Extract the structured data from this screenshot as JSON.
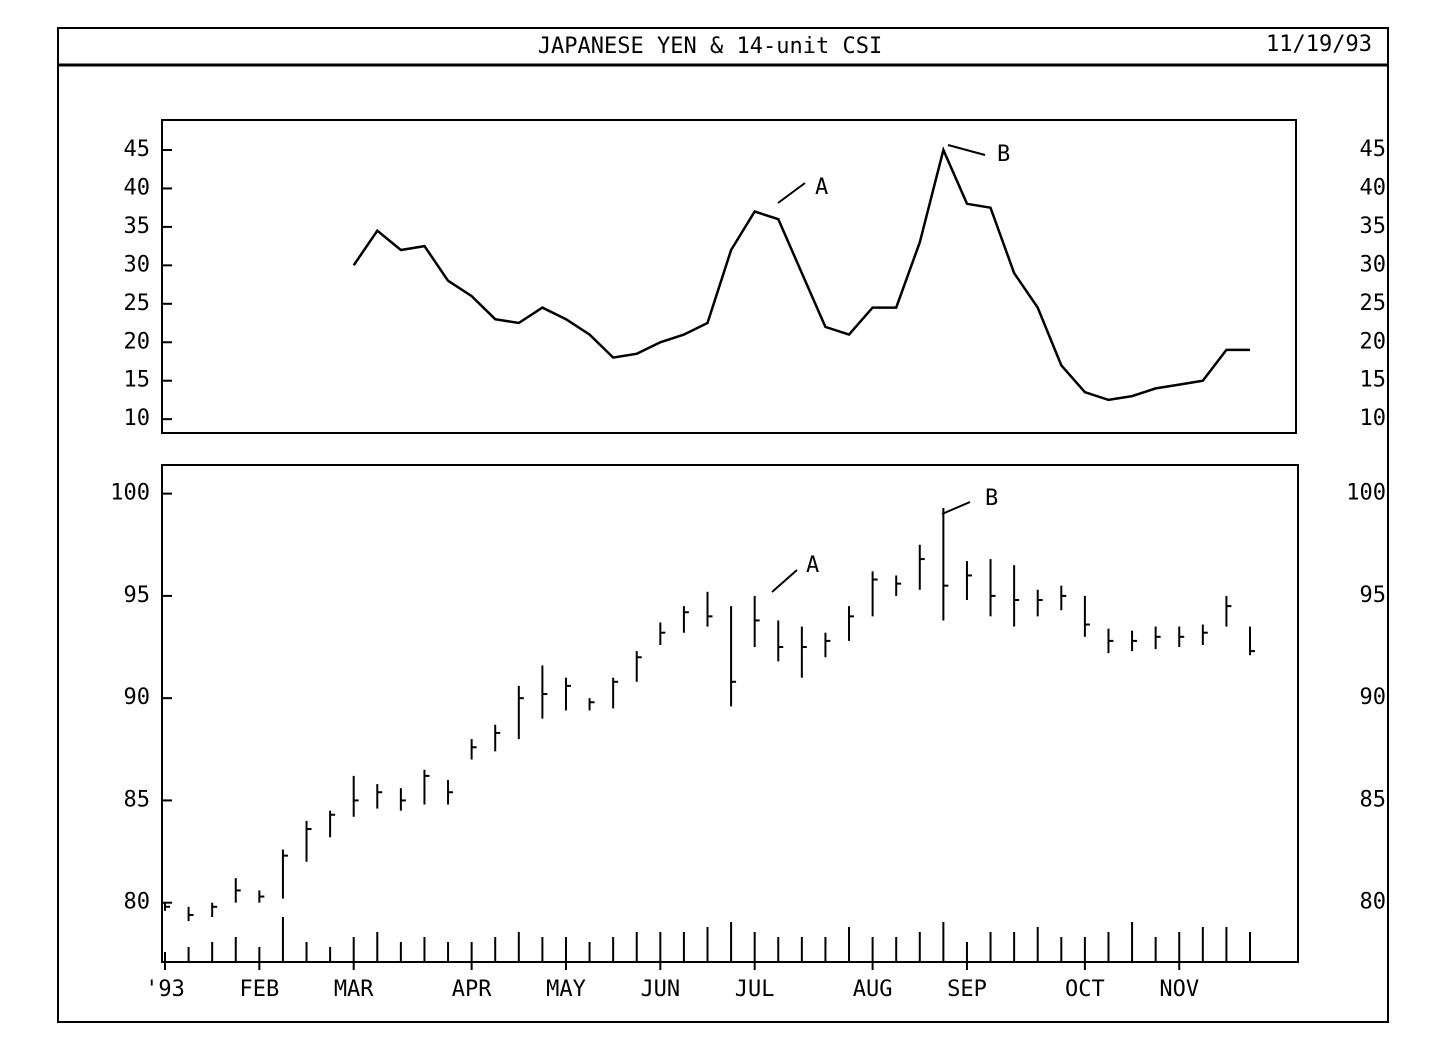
{
  "header": {
    "title": "JAPANESE YEN & 14-unit CSI",
    "date": "11/19/93"
  },
  "chart_data": [
    {
      "type": "line",
      "color": "#000000",
      "values": [
        null,
        null,
        null,
        null,
        null,
        null,
        null,
        null,
        30,
        34.5,
        32,
        32.5,
        28,
        26,
        23,
        22.5,
        24.5,
        23,
        21,
        18,
        18.5,
        20,
        21,
        22.5,
        32,
        37,
        36,
        29,
        22,
        21,
        24.5,
        24.5,
        33,
        45,
        38,
        37.5,
        29,
        24.5,
        17,
        13.5,
        12.5,
        13,
        14,
        14.5,
        15,
        19,
        19
      ],
      "ylim": [
        8.2,
        48.9
      ],
      "yticks": [
        10,
        15,
        20,
        25,
        30,
        35,
        40,
        45
      ],
      "annotations": [
        "A",
        "B"
      ]
    },
    {
      "type": "hilo",
      "color": "#000000",
      "categories": [
        "'93",
        null,
        null,
        null,
        "FEB",
        null,
        null,
        null,
        "MAR",
        null,
        null,
        null,
        null,
        "APR",
        null,
        null,
        null,
        "MAY",
        null,
        null,
        null,
        "JUN",
        null,
        null,
        null,
        "JUL",
        null,
        null,
        null,
        null,
        "AUG",
        null,
        null,
        null,
        "SEP",
        null,
        null,
        null,
        null,
        "OCT",
        null,
        null,
        null,
        "NOV",
        null,
        null,
        null
      ],
      "high": [
        80.0,
        79.8,
        80.0,
        81.2,
        80.6,
        82.6,
        84.0,
        84.5,
        86.2,
        85.8,
        85.6,
        86.5,
        86.0,
        88.0,
        88.7,
        90.6,
        91.6,
        91.0,
        90.0,
        91.0,
        92.3,
        93.7,
        94.5,
        95.2,
        94.5,
        95.0,
        93.8,
        93.5,
        93.2,
        94.5,
        96.2,
        96.0,
        97.5,
        99.3,
        96.7,
        96.8,
        96.5,
        95.3,
        95.5,
        95.0,
        93.4,
        93.3,
        93.5,
        93.5,
        93.6,
        95.0,
        93.5
      ],
      "low": [
        79.6,
        79.1,
        79.3,
        80.0,
        80.0,
        80.2,
        82.0,
        83.2,
        84.2,
        84.6,
        84.5,
        84.8,
        84.8,
        87.0,
        87.4,
        88.0,
        89.0,
        89.4,
        89.4,
        89.5,
        90.8,
        92.6,
        93.2,
        93.5,
        89.6,
        92.5,
        91.8,
        91.0,
        92.0,
        92.8,
        94.0,
        95.0,
        95.3,
        93.8,
        94.8,
        94.0,
        93.5,
        94.0,
        94.3,
        93.0,
        92.2,
        92.3,
        92.4,
        92.5,
        92.6,
        93.5,
        92.1
      ],
      "close": [
        79.8,
        79.4,
        79.8,
        80.6,
        80.3,
        82.3,
        83.6,
        84.3,
        85.0,
        85.4,
        85.0,
        86.2,
        85.4,
        87.6,
        88.3,
        90.0,
        90.2,
        90.6,
        89.8,
        90.8,
        92.0,
        93.2,
        94.2,
        94.0,
        90.8,
        93.8,
        92.5,
        92.5,
        92.8,
        94.0,
        95.8,
        95.6,
        96.8,
        95.5,
        96.0,
        95.0,
        94.8,
        94.8,
        95.0,
        93.6,
        92.8,
        92.8,
        93.0,
        93.0,
        93.2,
        94.5,
        92.3
      ],
      "volume": [
        2,
        3,
        4,
        5,
        3,
        9,
        4,
        3,
        5,
        6,
        4,
        5,
        4,
        4,
        5,
        6,
        5,
        5,
        4,
        5,
        6,
        6,
        6,
        7,
        8,
        6,
        5,
        5,
        5,
        7,
        5,
        5,
        6,
        8,
        4,
        6,
        6,
        7,
        5,
        5,
        6,
        8,
        5,
        6,
        7,
        7,
        6
      ],
      "vlim": [
        0,
        10
      ],
      "ylim": [
        77.1,
        101.4
      ],
      "yticks": [
        80,
        85,
        90,
        95,
        100
      ],
      "annotations": [
        "A",
        "B"
      ]
    }
  ]
}
